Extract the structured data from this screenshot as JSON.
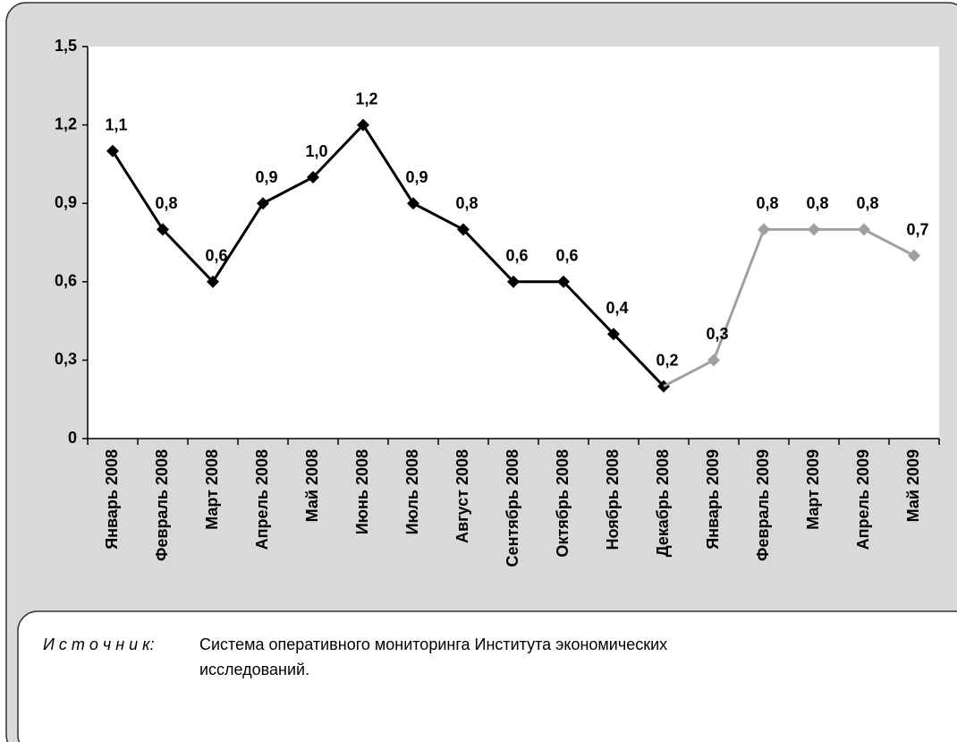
{
  "chart_data": {
    "type": "line",
    "categories": [
      "Январь 2008",
      "Февраль 2008",
      "Март 2008",
      "Апрель 2008",
      "Май 2008",
      "Июнь 2008",
      "Июль 2008",
      "Август 2008",
      "Сентябрь 2008",
      "Октябрь 2008",
      "Ноябрь 2008",
      "Декабрь 2008",
      "Январь 2009",
      "Февраль 2009",
      "Март 2009",
      "Апрель 2009",
      "Май 2009"
    ],
    "series": [
      {
        "color": "#000000",
        "values": [
          1.1,
          0.8,
          0.6,
          0.9,
          1.0,
          1.2,
          0.9,
          0.8,
          0.6,
          0.6,
          0.4,
          0.2,
          null,
          null,
          null,
          null,
          null
        ],
        "value_labels": [
          "1,1",
          "0,8",
          "0,6",
          "0,9",
          "1,0",
          "1,2",
          "0,9",
          "0,8",
          "0,6",
          "0,6",
          "0,4",
          "0,2",
          null,
          null,
          null,
          null,
          null
        ]
      },
      {
        "color": "#a0a0a0",
        "values": [
          null,
          null,
          null,
          null,
          null,
          null,
          null,
          null,
          null,
          null,
          null,
          0.2,
          0.3,
          0.8,
          0.8,
          0.8,
          0.7
        ],
        "value_labels": [
          null,
          null,
          null,
          null,
          null,
          null,
          null,
          null,
          null,
          null,
          null,
          null,
          "0,3",
          "0,8",
          "0,8",
          "0,8",
          "0,7"
        ]
      }
    ],
    "ylim": [
      0,
      1.5
    ],
    "yticks": [
      0,
      {
        "value": 0.3,
        "label": "0,3"
      },
      {
        "value": 0.6,
        "label": "0,6"
      },
      {
        "value": 0.9,
        "label": "0,9"
      },
      {
        "value": 1.2,
        "label": "1,2"
      },
      {
        "value": 1.5,
        "label": "1,5"
      }
    ]
  },
  "source": {
    "label": "И с т о ч н и к:",
    "lines": [
      "Система оперативного мониторинга Института экономических",
      "исследований."
    ]
  }
}
